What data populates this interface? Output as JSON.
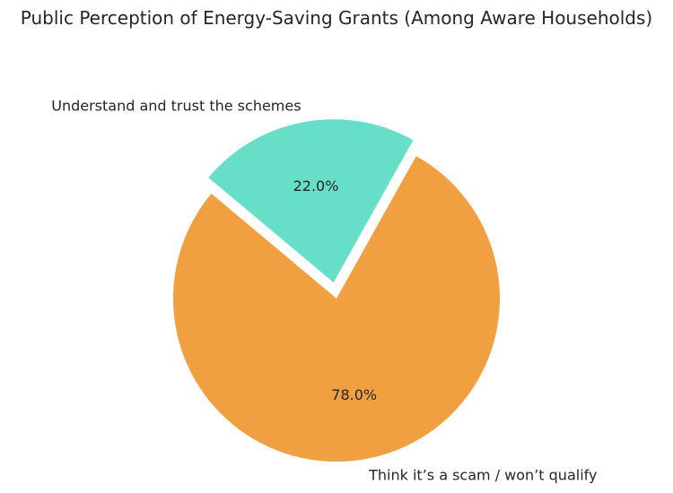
{
  "chart_data": {
    "type": "pie",
    "title": "Public Perception of Energy-Saving Grants (Among Aware Households)",
    "slices": [
      {
        "label": "Understand and trust the schemes",
        "value": 22.0,
        "pct_label": "22.0%",
        "color": "#66dec8",
        "exploded": true
      },
      {
        "label": "Think it’s a scam / won’t qualify",
        "value": 78.0,
        "pct_label": "78.0%",
        "color": "#f0a041",
        "exploded": false
      }
    ],
    "start_angle_deg": 140,
    "direction": "clockwise",
    "legend": "none"
  }
}
